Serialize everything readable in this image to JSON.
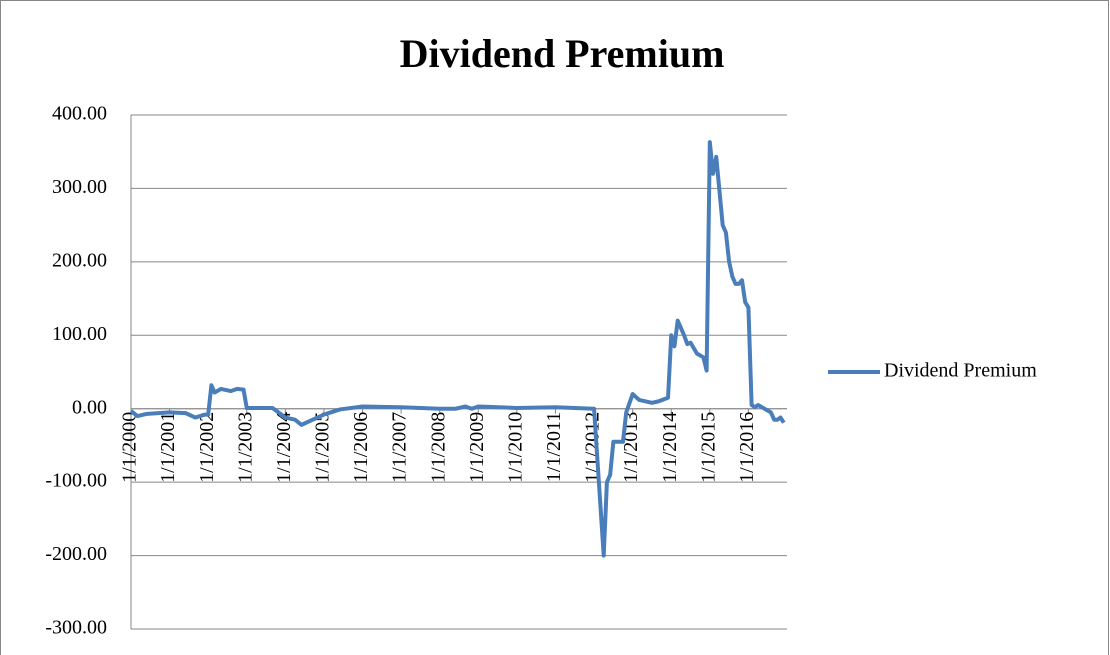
{
  "chart_data": {
    "type": "line",
    "title": "Dividend Premium",
    "x": [
      "1/1/2000",
      "3/1/2000",
      "6/1/2000",
      "1/1/2001",
      "6/1/2001",
      "9/1/2001",
      "12/1/2001",
      "1/1/2002",
      "2/1/2002",
      "3/1/2002",
      "5/1/2002",
      "8/1/2002",
      "10/1/2002",
      "12/1/2002",
      "1/1/2003",
      "9/1/2003",
      "1/1/2004",
      "4/1/2004",
      "6/1/2004",
      "9/1/2004",
      "1/1/2005",
      "6/1/2005",
      "1/1/2006",
      "1/1/2007",
      "1/1/2008",
      "6/1/2008",
      "9/1/2008",
      "11/1/2008",
      "1/1/2009",
      "1/1/2010",
      "1/1/2011",
      "1/1/2012",
      "4/1/2012",
      "5/1/2012",
      "6/1/2012",
      "7/1/2012",
      "10/1/2012",
      "11/1/2012",
      "1/1/2013",
      "3/1/2013",
      "7/1/2013",
      "9/1/2013",
      "12/1/2013",
      "1/1/2014",
      "2/1/2014",
      "3/1/2014",
      "5/1/2014",
      "6/1/2014",
      "7/1/2014",
      "9/1/2014",
      "11/1/2014",
      "12/1/2014",
      "1/1/2015",
      "2/1/2015",
      "3/1/2015",
      "5/1/2015",
      "6/1/2015",
      "7/1/2015",
      "8/1/2015",
      "9/1/2015",
      "10/1/2015",
      "11/1/2015",
      "12/1/2015",
      "1/1/2016",
      "2/1/2016",
      "3/1/2016",
      "4/1/2016",
      "6/1/2016",
      "8/1/2016",
      "9/1/2016",
      "10/1/2016",
      "11/1/2016",
      "12/1/2016"
    ],
    "series": [
      {
        "name": "Dividend Premium",
        "color": "#4a7ebb",
        "values": [
          -3,
          -10,
          -7,
          -5,
          -6,
          -12,
          -8,
          -8,
          32,
          22,
          27,
          24,
          27,
          26,
          1,
          1,
          -12,
          -15,
          -22,
          -16,
          -8,
          -1,
          3,
          2,
          0,
          0,
          3,
          0,
          3,
          1,
          2,
          0,
          -200,
          -100,
          -90,
          -45,
          -45,
          -5,
          20,
          12,
          8,
          10,
          15,
          100,
          85,
          120,
          100,
          88,
          90,
          75,
          70,
          52,
          363,
          320,
          343,
          250,
          240,
          200,
          180,
          170,
          170,
          175,
          145,
          138,
          5,
          2,
          5,
          0,
          -5,
          -15,
          -15,
          -12,
          -19
        ]
      }
    ],
    "xlim": [
      "1/1/2000",
      "1/1/2017"
    ],
    "xticks": [
      "1/1/2000",
      "1/1/2001",
      "1/1/2002",
      "1/1/2003",
      "1/1/2004",
      "1/1/2005",
      "1/1/2006",
      "1/1/2007",
      "1/1/2008",
      "1/1/2009",
      "1/1/2010",
      "1/1/2011",
      "1/1/2012",
      "1/1/2013",
      "1/1/2014",
      "1/1/2015",
      "1/1/2016"
    ],
    "ylim": [
      -300,
      400
    ],
    "yticks": [
      {
        "value": -300,
        "label": "-300.00"
      },
      {
        "value": -200,
        "label": "-200.00"
      },
      {
        "value": -100,
        "label": "-100.00"
      },
      {
        "value": 0,
        "label": "0.00"
      },
      {
        "value": 100,
        "label": "100.00"
      },
      {
        "value": 200,
        "label": "200.00"
      },
      {
        "value": 300,
        "label": "300.00"
      },
      {
        "value": 400,
        "label": "400.00"
      }
    ],
    "grid": true,
    "legend": "right"
  }
}
